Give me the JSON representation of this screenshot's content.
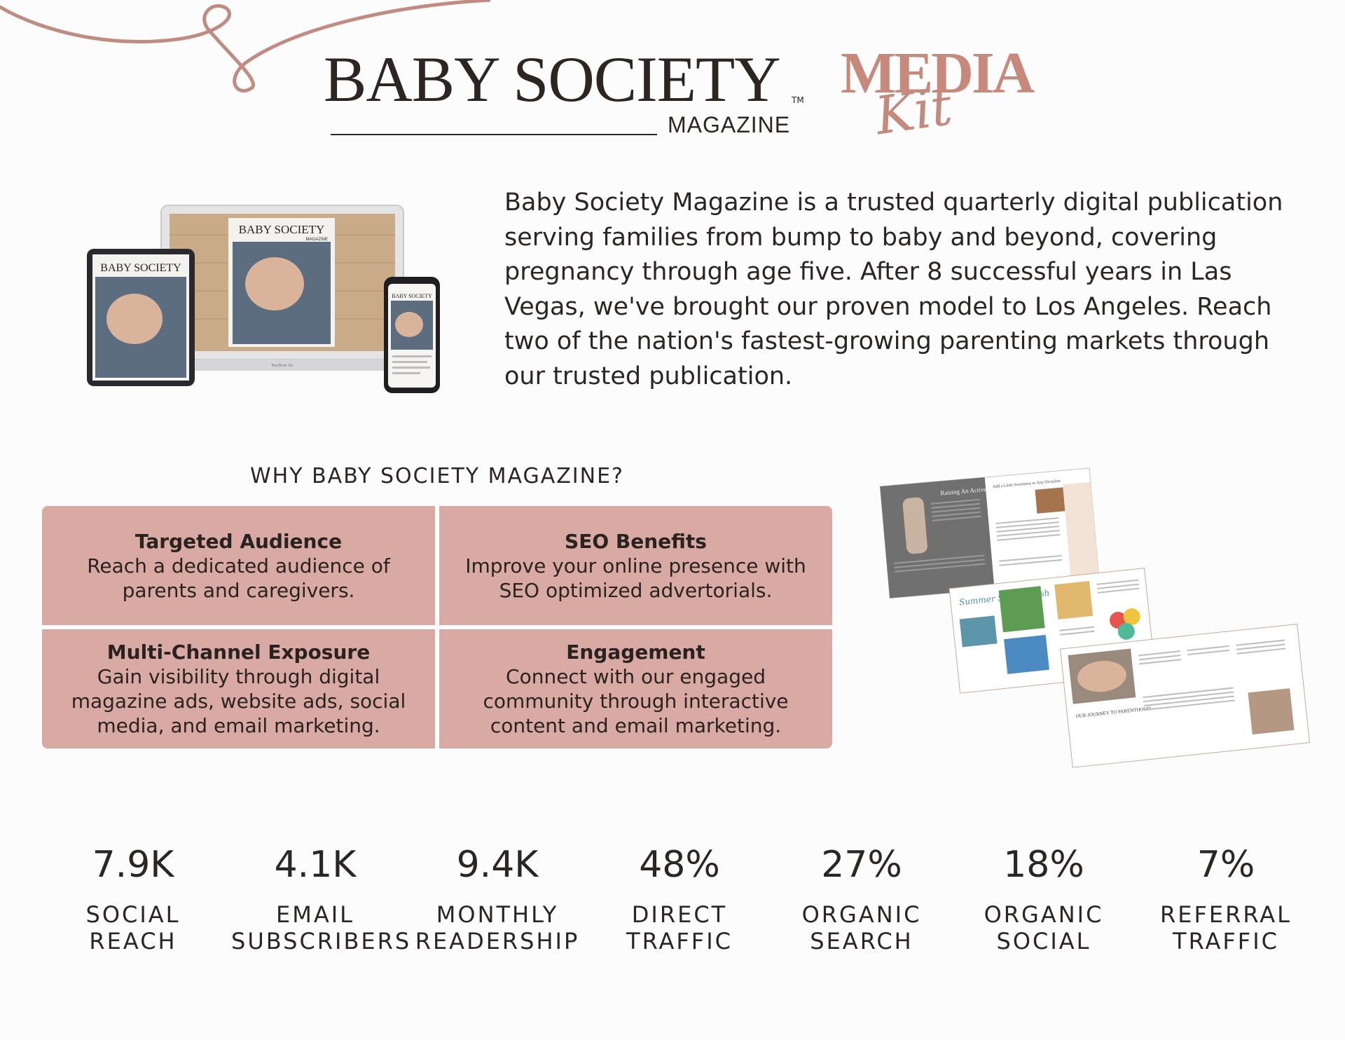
{
  "colors": {
    "accent": "#c6897c",
    "card": "#d8aaa3",
    "text": "#2b2523"
  },
  "header": {
    "brand_title": "BABY SOCIETY",
    "brand_tm": "TM",
    "brand_subtitle": "MAGAZINE",
    "media": "MEDIA",
    "kit": "Kit"
  },
  "devices": {
    "cover_title": "BABY SOCIETY",
    "cover_sub": "MAGAZINE",
    "laptop_label": "MacBook Air"
  },
  "intro": {
    "text": "Baby Society Magazine is a trusted quarterly digital publication serving families from bump to baby and beyond, covering pregnancy through age five. After 8 successful years in Las Vegas, we've brought our proven model to Los Angeles. Reach two of the nation's fastest-growing parenting markets through our trusted publication."
  },
  "why": {
    "heading": "WHY BABY SOCIETY MAGAZINE?",
    "items": [
      {
        "title": "Targeted Audience",
        "desc": "Reach a dedicated audience of parents and caregivers."
      },
      {
        "title": "SEO Benefits",
        "desc": "Improve your online presence with SEO optimized advertorials."
      },
      {
        "title": "Multi-Channel Exposure",
        "desc": "Gain visibility through digital magazine ads, website ads, social media, and email marketing."
      },
      {
        "title": "Engagement",
        "desc": "Connect with our engaged community through interactive content and email marketing."
      }
    ]
  },
  "spreads": {
    "spread1_title": "Raising An Active Child",
    "spread1_right": "Add a Little Sweetness to Any Occasion",
    "spread2_title": "Summer Splash Bash",
    "spread3_title": "OUR JOURNEY TO PARENTHOOD"
  },
  "stats": [
    {
      "value": "7.9K",
      "label1": "SOCIAL",
      "label2": "REACH"
    },
    {
      "value": "4.1K",
      "label1": "EMAIL",
      "label2": "SUBSCRIBERS"
    },
    {
      "value": "9.4K",
      "label1": "MONTHLY",
      "label2": "READERSHIP"
    },
    {
      "value": "48%",
      "label1": "DIRECT",
      "label2": "TRAFFIC"
    },
    {
      "value": "27%",
      "label1": "ORGANIC",
      "label2": "SEARCH"
    },
    {
      "value": "18%",
      "label1": "ORGANIC",
      "label2": "SOCIAL"
    },
    {
      "value": "7%",
      "label1": "REFERRAL",
      "label2": "TRAFFIC"
    }
  ]
}
